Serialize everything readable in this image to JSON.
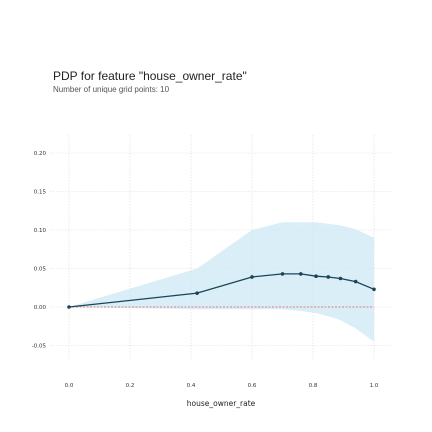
{
  "chart_data": {
    "type": "line",
    "title": "PDP for feature \"house_owner_rate\"",
    "subtitle": "Number of unique grid points: 10",
    "xlabel": "house_owner_rate",
    "ylabel": "",
    "xlim": [
      -0.05,
      1.05
    ],
    "ylim": [
      -0.06,
      0.21
    ],
    "x_ticks": [
      0.0,
      0.2,
      0.4,
      0.6,
      0.8,
      1.0
    ],
    "x_tick_labels": [
      "0.0",
      "0.2",
      "0.4",
      "0.6",
      "0.8",
      "1.0"
    ],
    "y_ticks": [
      -0.05,
      0.0,
      0.05,
      0.1,
      0.15,
      0.2
    ],
    "y_tick_labels": [
      "-0.05",
      "0.00",
      "0.05",
      "0.10",
      "0.15",
      "0.20"
    ],
    "grid": true,
    "series": [
      {
        "x": [
          0.0,
          0.42,
          0.6,
          0.7,
          0.76,
          0.81,
          0.85,
          0.89,
          0.94,
          1.0
        ],
        "values": [
          0.0,
          0.018,
          0.039,
          0.043,
          0.043,
          0.04,
          0.039,
          0.037,
          0.033,
          0.023
        ],
        "lower": [
          0.0,
          -0.003,
          -0.003,
          -0.003,
          -0.005,
          -0.008,
          -0.012,
          -0.017,
          -0.028,
          -0.045
        ],
        "upper": [
          0.0,
          0.05,
          0.1,
          0.11,
          0.11,
          0.11,
          0.108,
          0.106,
          0.101,
          0.09
        ]
      }
    ],
    "reference_line": 0.0,
    "colors": {
      "line": "#1a4556",
      "band": "#cce8f4",
      "reference": "#e05a5a"
    }
  }
}
